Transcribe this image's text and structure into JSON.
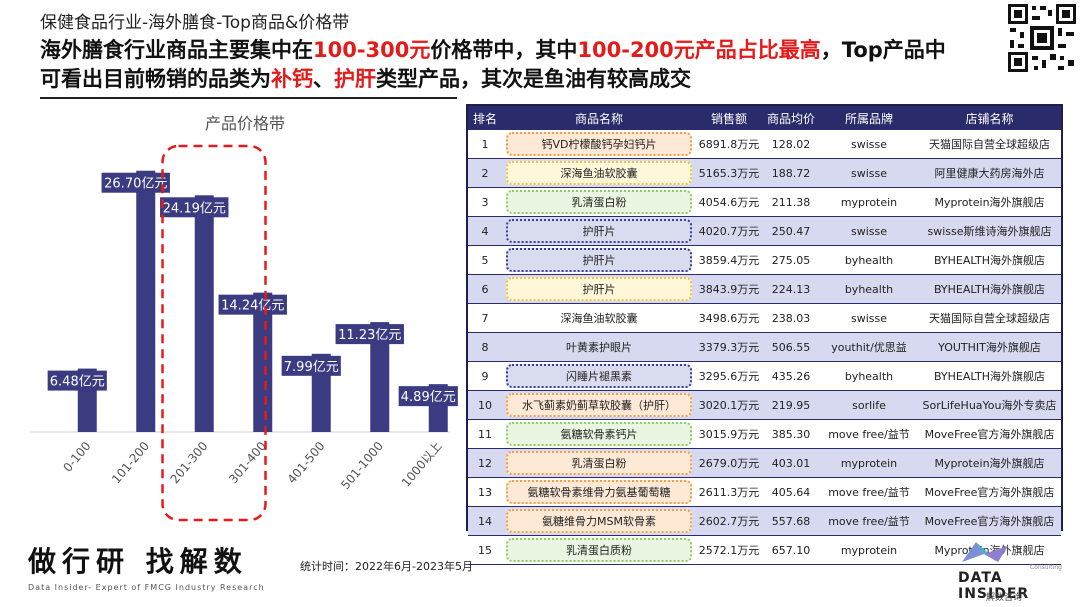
{
  "header": {
    "top_title": "保健食品行业-海外膳食-Top商品&价格带",
    "headline_parts": [
      {
        "text": "海外膳食行业商品主要集中在",
        "red": false
      },
      {
        "text": "100-300元",
        "red": true
      },
      {
        "text": "价格带中，其中",
        "red": false
      },
      {
        "text": "100-200元产品占比最高",
        "red": true
      },
      {
        "text": "，Top产品中可看出目前畅销的品类为",
        "red": false
      },
      {
        "text": "补钙",
        "red": true
      },
      {
        "text": "、",
        "red": false
      },
      {
        "text": "护肝",
        "red": true
      },
      {
        "text": "类型产品，其次是鱼油有较高成交",
        "red": false
      }
    ]
  },
  "chart_data": {
    "type": "bar",
    "title": "产品价格带",
    "categories": [
      "0-100",
      "101-200",
      "201-300",
      "301-400",
      "401-500",
      "501-1000",
      "1000以上"
    ],
    "values": [
      6.48,
      26.7,
      24.19,
      14.24,
      7.99,
      11.23,
      4.89
    ],
    "data_labels": [
      "6.48亿元",
      "26.70亿元",
      "24.19亿元",
      "14.24亿元",
      "7.99亿元",
      "11.23亿元",
      "4.89亿元"
    ],
    "ylim": [
      0,
      28
    ],
    "bar_color": "#3b3b82",
    "highlight": [
      "101-200",
      "201-300"
    ],
    "highlight_color": "#e41b1b"
  },
  "table": {
    "headers": [
      "排名",
      "商品名称",
      "销售额",
      "商品均价",
      "所属品牌",
      "店铺名称"
    ],
    "rows": [
      {
        "rank": "1",
        "name": "钙VD柠檬酸钙孕妇钙片",
        "sales": "6891.8万元",
        "price": "128.02",
        "brand": "swisse",
        "store": "天猫国际自营全球超级店",
        "box": "orange"
      },
      {
        "rank": "2",
        "name": "深海鱼油软胶囊",
        "sales": "5165.3万元",
        "price": "188.72",
        "brand": "swisse",
        "store": "阿里健康大药房海外店",
        "box": "yellow"
      },
      {
        "rank": "3",
        "name": "乳清蛋白粉",
        "sales": "4054.6万元",
        "price": "211.38",
        "brand": "myprotein",
        "store": "Myprotein海外旗舰店",
        "box": "green"
      },
      {
        "rank": "4",
        "name": "护肝片",
        "sales": "4020.7万元",
        "price": "250.47",
        "brand": "swisse",
        "store": "swisse斯维诗海外旗舰店",
        "box": "navy"
      },
      {
        "rank": "5",
        "name": "护肝片",
        "sales": "3859.4万元",
        "price": "275.05",
        "brand": "byhealth",
        "store": "BYHEALTH海外旗舰店",
        "box": "navy"
      },
      {
        "rank": "6",
        "name": "护肝片",
        "sales": "3843.9万元",
        "price": "224.13",
        "brand": "byhealth",
        "store": "BYHEALTH海外旗舰店",
        "box": "yellow"
      },
      {
        "rank": "7",
        "name": "深海鱼油软胶囊",
        "sales": "3498.6万元",
        "price": "238.03",
        "brand": "swisse",
        "store": "天猫国际自营全球超级店",
        "box": ""
      },
      {
        "rank": "8",
        "name": "叶黄素护眼片",
        "sales": "3379.3万元",
        "price": "506.55",
        "brand": "youthit/优思益",
        "store": "YOUTHIT海外旗舰店",
        "box": ""
      },
      {
        "rank": "9",
        "name": "闪睡片褪黑素",
        "sales": "3295.6万元",
        "price": "435.26",
        "brand": "byhealth",
        "store": "BYHEALTH海外旗舰店",
        "box": "navy"
      },
      {
        "rank": "10",
        "name": "水飞蓟素奶蓟草软胶囊（护肝）",
        "sales": "3020.1万元",
        "price": "219.95",
        "brand": "sorlife",
        "store": "SorLifeHuaYou海外专卖店",
        "box": "orange"
      },
      {
        "rank": "11",
        "name": "氨糖软骨素钙片",
        "sales": "3015.9万元",
        "price": "385.30",
        "brand": "move free/益节",
        "store": "MoveFree官方海外旗舰店",
        "box": "green"
      },
      {
        "rank": "12",
        "name": "乳清蛋白粉",
        "sales": "2679.0万元",
        "price": "403.01",
        "brand": "myprotein",
        "store": "Myprotein海外旗舰店",
        "box": "orange"
      },
      {
        "rank": "13",
        "name": "氨糖软骨素维骨力氨基葡萄糖",
        "sales": "2611.3万元",
        "price": "405.64",
        "brand": "move free/益节",
        "store": "MoveFree官方海外旗舰店",
        "box": "orange"
      },
      {
        "rank": "14",
        "name": "氨糖维骨力MSM软骨素",
        "sales": "2602.7万元",
        "price": "557.68",
        "brand": "move free/益节",
        "store": "MoveFree官方海外旗舰店",
        "box": "orange"
      },
      {
        "rank": "15",
        "name": "乳清蛋白质粉",
        "sales": "2572.1万元",
        "price": "657.10",
        "brand": "myprotein",
        "store": "Myprotein海外旗舰店",
        "box": "green"
      }
    ]
  },
  "footer": {
    "logo_text": "做行研 找解数",
    "logo_sub": "Data Insider- Expert of FMCG Industry Research",
    "stat_time": "统计时间：2022年6月-2023年5月",
    "brand_name": "DATA INSIDER",
    "brand_cn": "解数咨询",
    "brand_consulting": "Consulting"
  }
}
